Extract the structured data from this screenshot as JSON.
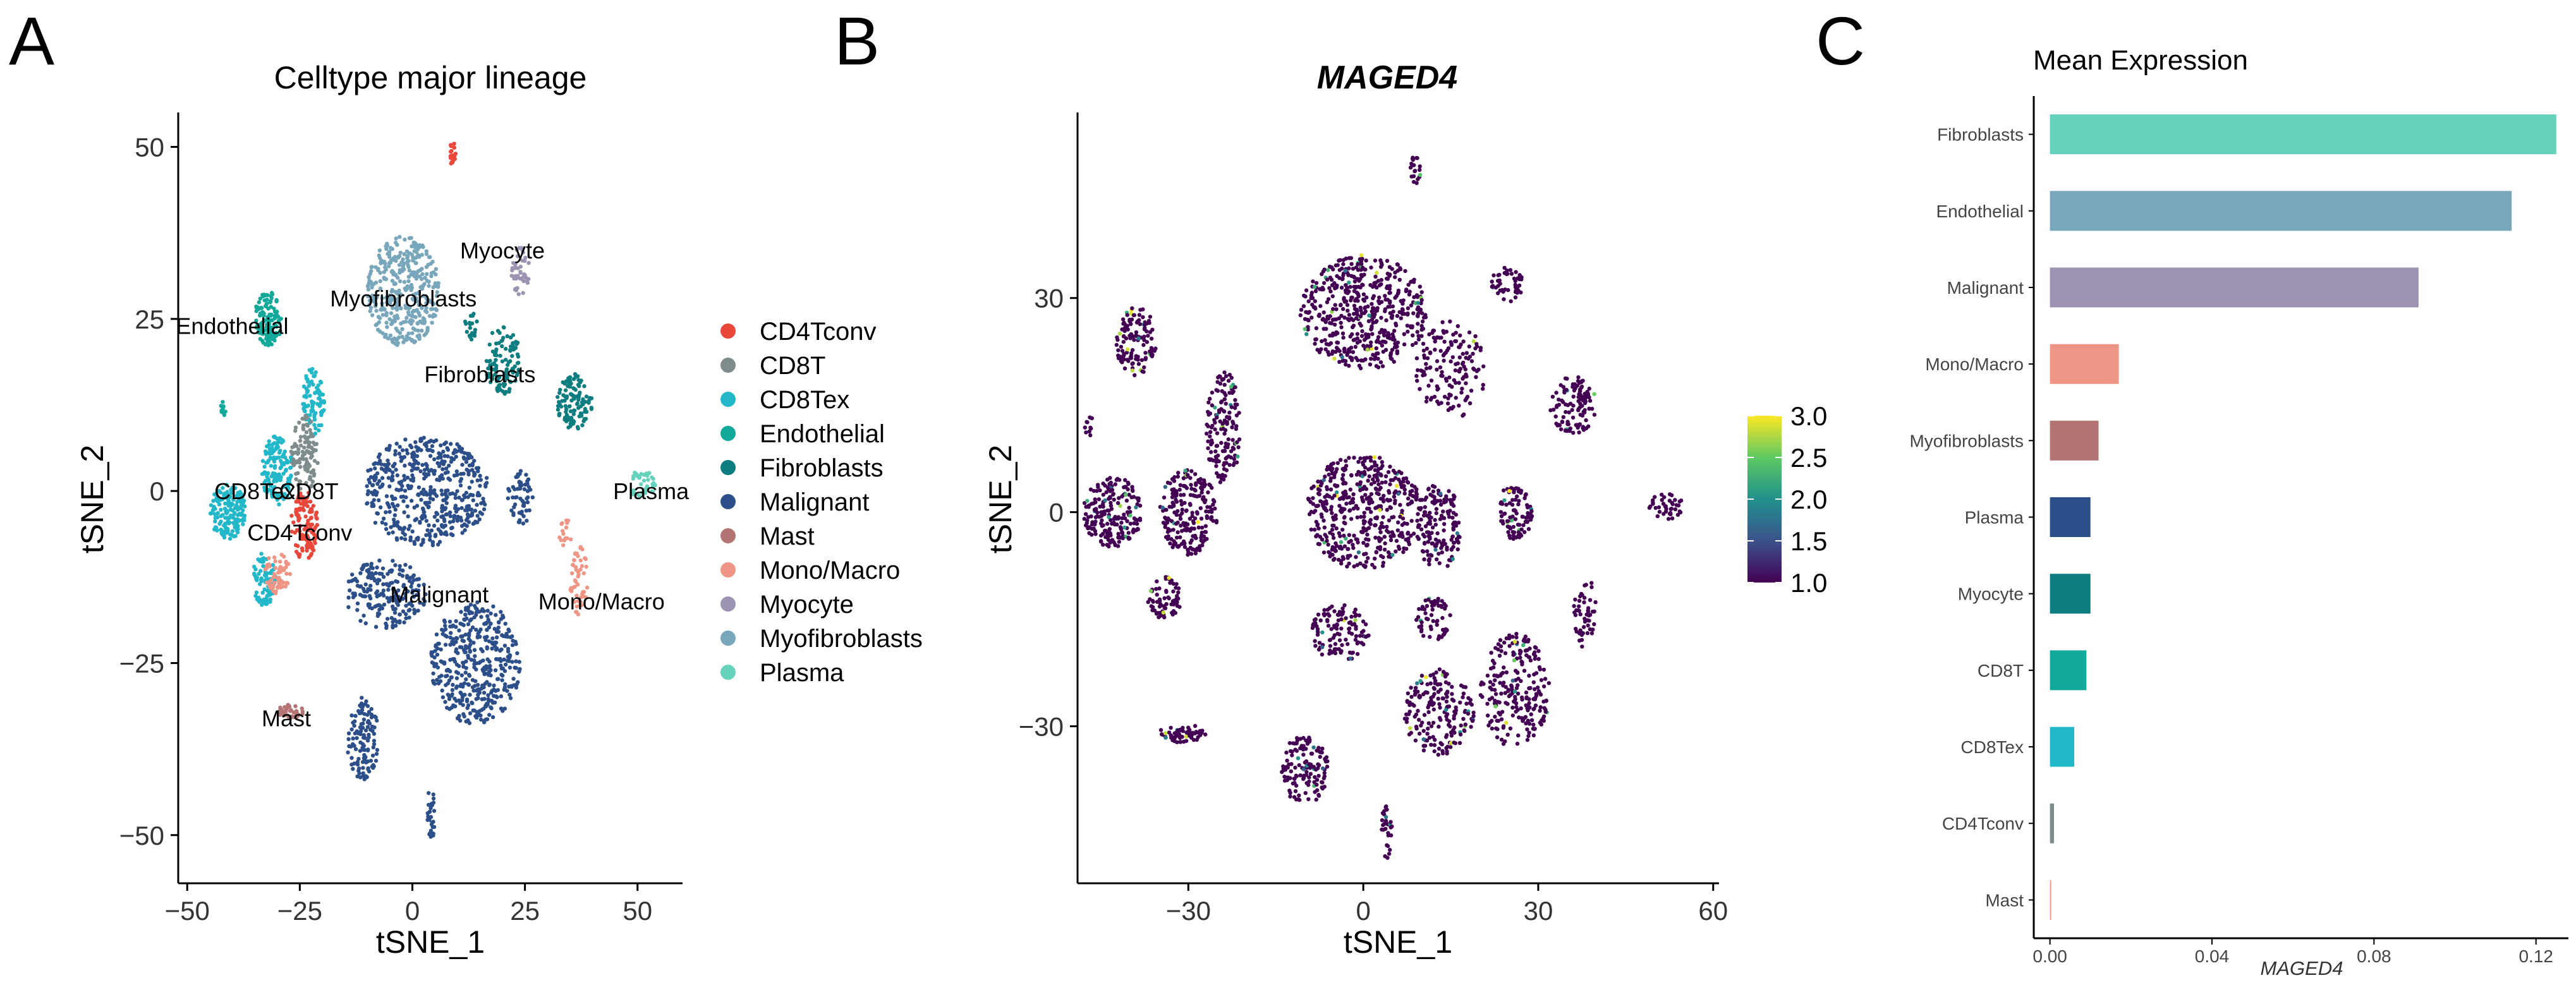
{
  "panels": {
    "a": "A",
    "b": "B",
    "c": "C"
  },
  "chart_data": [
    {
      "type": "scatter",
      "title": "Celltype major lineage",
      "xlabel": "tSNE_1",
      "ylabel": "tSNE_2",
      "xlim": [
        -52,
        60
      ],
      "ylim": [
        -57,
        55
      ],
      "xticks": [
        -50,
        -25,
        0,
        25,
        50
      ],
      "yticks": [
        -50,
        -25,
        0,
        25,
        50
      ],
      "xtick_labels": [
        "−50",
        "−25",
        "0",
        "25",
        "50"
      ],
      "ytick_labels": [
        "−50",
        "−25",
        "0",
        "25",
        "50"
      ],
      "legend": [
        {
          "label": "CD4Tconv",
          "color": "#E8473A"
        },
        {
          "label": "CD8T",
          "color": "#7F8C8D"
        },
        {
          "label": "CD8Tex",
          "color": "#22B8C9"
        },
        {
          "label": "Endothelial",
          "color": "#12A89A"
        },
        {
          "label": "Fibroblasts",
          "color": "#0E7D80"
        },
        {
          "label": "Malignant",
          "color": "#2C4F8A"
        },
        {
          "label": "Mast",
          "color": "#B57474"
        },
        {
          "label": "Mono/Macro",
          "color": "#EE9585"
        },
        {
          "label": "Myocyte",
          "color": "#9E92B2"
        },
        {
          "label": "Myofibroblasts",
          "color": "#78A6BB"
        },
        {
          "label": "Plasma",
          "color": "#67D2BC"
        }
      ],
      "annotations": [
        {
          "text": "Myocyte",
          "x": 20,
          "y": 35
        },
        {
          "text": "Myofibroblasts",
          "x": -2,
          "y": 28
        },
        {
          "text": "Endothelial",
          "x": -40,
          "y": 24
        },
        {
          "text": "Fibroblasts",
          "x": 15,
          "y": 17
        },
        {
          "text": "Plasma",
          "x": 53,
          "y": 0
        },
        {
          "text": "CD8Tex",
          "x": -35,
          "y": 0
        },
        {
          "text": "CD8T",
          "x": -23,
          "y": 0
        },
        {
          "text": "CD4Tconv",
          "x": -25,
          "y": -6
        },
        {
          "text": "Malignant",
          "x": 6,
          "y": -15
        },
        {
          "text": "Mono/Macro",
          "x": 42,
          "y": -16
        },
        {
          "text": "Mast",
          "x": -28,
          "y": -33
        }
      ],
      "clusters": [
        {
          "label": "Myofibroblasts",
          "cx": -2,
          "cy": 29,
          "rx": 8,
          "ry": 8,
          "n": 380
        },
        {
          "label": "Myocyte",
          "cx": 24,
          "cy": 32,
          "rx": 2,
          "ry": 3.5,
          "n": 45
        },
        {
          "label": "CD4Tconv",
          "cx": 9,
          "cy": 49,
          "rx": 0.8,
          "ry": 1.8,
          "n": 22
        },
        {
          "label": "Endothelial",
          "cx": -32,
          "cy": 25,
          "rx": 3,
          "ry": 4,
          "n": 120
        },
        {
          "label": "Endothelial",
          "cx": -42,
          "cy": 12,
          "rx": 0.8,
          "ry": 1.5,
          "n": 10
        },
        {
          "label": "Fibroblasts",
          "cx": 20,
          "cy": 19,
          "rx": 4,
          "ry": 5,
          "n": 110
        },
        {
          "label": "Fibroblasts",
          "cx": 36,
          "cy": 13,
          "rx": 4,
          "ry": 4,
          "n": 110
        },
        {
          "label": "Fibroblasts",
          "cx": 13,
          "cy": 24,
          "rx": 1.5,
          "ry": 2,
          "n": 20
        },
        {
          "label": "CD8Tex",
          "cx": -41,
          "cy": -3,
          "rx": 4,
          "ry": 4,
          "n": 160
        },
        {
          "label": "CD8Tex",
          "cx": -30,
          "cy": 3,
          "rx": 3.5,
          "ry": 5,
          "n": 140
        },
        {
          "label": "CD8Tex",
          "cx": -33,
          "cy": -13,
          "rx": 2.5,
          "ry": 4,
          "n": 80
        },
        {
          "label": "CD8Tex",
          "cx": -22,
          "cy": 13,
          "rx": 2.5,
          "ry": 5,
          "n": 90
        },
        {
          "label": "CD8T",
          "cx": -24,
          "cy": 5,
          "rx": 3,
          "ry": 6,
          "n": 110
        },
        {
          "label": "CD4Tconv",
          "cx": -24,
          "cy": -5,
          "rx": 3,
          "ry": 5,
          "n": 120
        },
        {
          "label": "Mono/Macro",
          "cx": -30,
          "cy": -12,
          "rx": 3,
          "ry": 3,
          "n": 60
        },
        {
          "label": "Mono/Macro",
          "cx": 37,
          "cy": -13,
          "rx": 2,
          "ry": 5,
          "n": 50
        },
        {
          "label": "Mono/Macro",
          "cx": 34,
          "cy": -6,
          "rx": 1.5,
          "ry": 2,
          "n": 16
        },
        {
          "label": "Plasma",
          "cx": 51,
          "cy": 1,
          "rx": 3,
          "ry": 2,
          "n": 40
        },
        {
          "label": "Malignant",
          "cx": 3,
          "cy": 0,
          "rx": 14,
          "ry": 8,
          "n": 500
        },
        {
          "label": "Malignant",
          "cx": 24,
          "cy": -1,
          "rx": 3,
          "ry": 4,
          "n": 60
        },
        {
          "label": "Malignant",
          "cx": 14,
          "cy": -25,
          "rx": 10,
          "ry": 9,
          "n": 420
        },
        {
          "label": "Malignant",
          "cx": -6,
          "cy": -15,
          "rx": 9,
          "ry": 5,
          "n": 200
        },
        {
          "label": "Malignant",
          "cx": -11,
          "cy": -36,
          "rx": 3.5,
          "ry": 6,
          "n": 120
        },
        {
          "label": "Malignant",
          "cx": 4,
          "cy": -47,
          "rx": 1,
          "ry": 4,
          "n": 30
        },
        {
          "label": "Mast",
          "cx": -27,
          "cy": -32,
          "rx": 3,
          "ry": 1,
          "n": 40
        }
      ]
    },
    {
      "type": "scatter",
      "title": "MAGED4",
      "xlabel": "tSNE_1",
      "ylabel": "tSNE_2",
      "xlim": [
        -49,
        61
      ],
      "ylim": [
        -52,
        56
      ],
      "xticks": [
        -30,
        0,
        30,
        60
      ],
      "yticks": [
        -30,
        0,
        30
      ],
      "xtick_labels": [
        "−30",
        "0",
        "30",
        "60"
      ],
      "ytick_labels": [
        "−30",
        "0",
        "30"
      ],
      "colorbar": {
        "min": 1.0,
        "max": 3.0,
        "ticks": [
          3.0,
          2.5,
          2.0,
          1.5,
          1.0
        ],
        "tick_labels": [
          "3.0",
          "2.5",
          "2.0",
          "1.5",
          "1.0"
        ],
        "colors": [
          "#440154",
          "#3B528B",
          "#21918C",
          "#5EC962",
          "#FDE725"
        ]
      },
      "base_value": 1.0,
      "clusters": [
        {
          "cx": 0,
          "cy": 28,
          "rx": 11,
          "ry": 8,
          "n": 520
        },
        {
          "cx": 9,
          "cy": 48,
          "rx": 1,
          "ry": 2,
          "n": 20
        },
        {
          "cx": 25,
          "cy": 32,
          "rx": 3,
          "ry": 2.5,
          "n": 45
        },
        {
          "cx": -39,
          "cy": 24,
          "rx": 3.5,
          "ry": 5,
          "n": 120
        },
        {
          "cx": -47,
          "cy": 12,
          "rx": 0.8,
          "ry": 1.5,
          "n": 10
        },
        {
          "cx": -24,
          "cy": 12,
          "rx": 3,
          "ry": 8,
          "n": 150
        },
        {
          "cx": 15,
          "cy": 20,
          "rx": 6,
          "ry": 7,
          "n": 150
        },
        {
          "cx": 36,
          "cy": 15,
          "rx": 4,
          "ry": 4,
          "n": 110
        },
        {
          "cx": -43,
          "cy": 0,
          "rx": 5,
          "ry": 5,
          "n": 200
        },
        {
          "cx": -30,
          "cy": 0,
          "rx": 5,
          "ry": 6,
          "n": 220
        },
        {
          "cx": -34,
          "cy": -12,
          "rx": 3,
          "ry": 3,
          "n": 70
        },
        {
          "cx": 0,
          "cy": 0,
          "rx": 10,
          "ry": 8,
          "n": 480
        },
        {
          "cx": 13,
          "cy": -2,
          "rx": 4,
          "ry": 6,
          "n": 150
        },
        {
          "cx": 26,
          "cy": 0,
          "rx": 3,
          "ry": 4,
          "n": 90
        },
        {
          "cx": 52,
          "cy": 1,
          "rx": 3,
          "ry": 2,
          "n": 40
        },
        {
          "cx": 38,
          "cy": -14,
          "rx": 2,
          "ry": 5,
          "n": 50
        },
        {
          "cx": -4,
          "cy": -17,
          "rx": 5,
          "ry": 4,
          "n": 120
        },
        {
          "cx": 26,
          "cy": -25,
          "rx": 6,
          "ry": 8,
          "n": 230
        },
        {
          "cx": 13,
          "cy": -28,
          "rx": 6,
          "ry": 6,
          "n": 190
        },
        {
          "cx": 12,
          "cy": -15,
          "rx": 3,
          "ry": 3,
          "n": 60
        },
        {
          "cx": -31,
          "cy": -31,
          "rx": 4,
          "ry": 1.3,
          "n": 60
        },
        {
          "cx": -10,
          "cy": -36,
          "rx": 4,
          "ry": 5,
          "n": 130
        },
        {
          "cx": 4,
          "cy": -45,
          "rx": 1,
          "ry": 4,
          "n": 30
        }
      ]
    },
    {
      "type": "bar",
      "orientation": "horizontal",
      "title": "Mean Expression",
      "xlabel": "MAGED4",
      "ylabel": "",
      "xlim": [
        -0.004,
        0.128
      ],
      "xticks": [
        0.0,
        0.04,
        0.08,
        0.12
      ],
      "xtick_labels": [
        "0.00",
        "0.04",
        "0.08",
        "0.12"
      ],
      "categories": [
        "Fibroblasts",
        "Endothelial",
        "Malignant",
        "Mono/Macro",
        "Myofibroblasts",
        "Plasma",
        "Myocyte",
        "CD8T",
        "CD8Tex",
        "CD4Tconv",
        "Mast"
      ],
      "values": [
        0.125,
        0.114,
        0.091,
        0.017,
        0.012,
        0.01,
        0.01,
        0.009,
        0.006,
        0.001,
        0.0003
      ],
      "colors": [
        "#67D2BC",
        "#78A6BB",
        "#9E92B2",
        "#EE9585",
        "#B57474",
        "#2C4F8A",
        "#0E7D80",
        "#12A89A",
        "#22B8C9",
        "#7F8C8D",
        "#EE9585"
      ]
    }
  ]
}
